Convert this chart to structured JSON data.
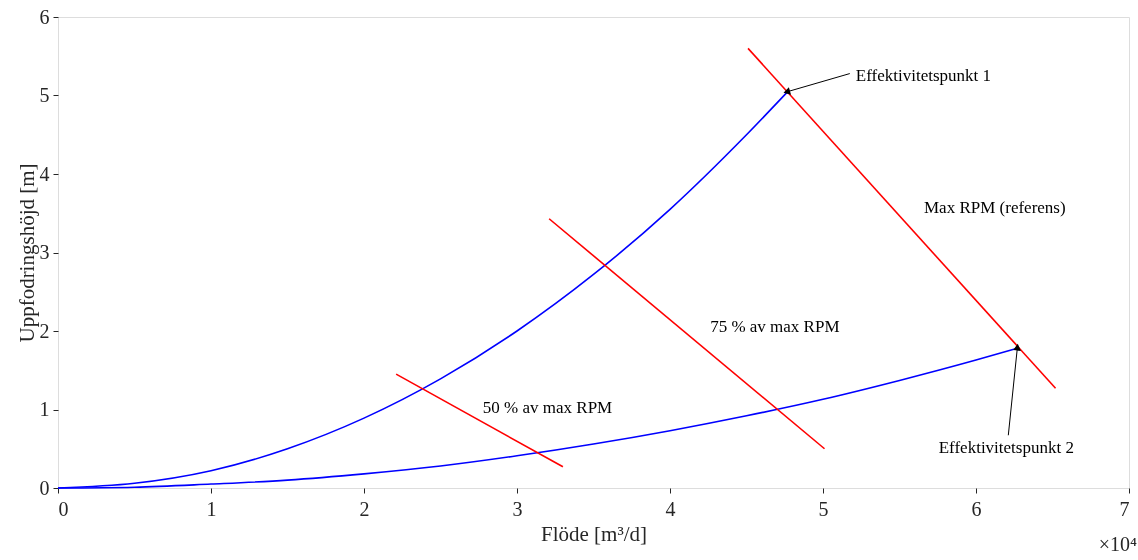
{
  "chart_data": {
    "type": "line",
    "xlabel": "Flöde [m³/d]",
    "ylabel": "Uppfodringshöjd [m]",
    "xlim": [
      0,
      7
    ],
    "ylim": [
      0,
      6
    ],
    "xticks": [
      0,
      1,
      2,
      3,
      4,
      5,
      6,
      7
    ],
    "yticks": [
      0,
      1,
      2,
      3,
      4,
      5,
      6
    ],
    "grid": false,
    "marker": "none",
    "line_style": "solid",
    "series": [
      {
        "color": "#0000ff",
        "x": [
          0,
          0.5,
          1,
          1.5,
          2,
          2.5,
          3,
          3.5,
          4,
          4.5,
          4.77
        ],
        "values": [
          0,
          0.06,
          0.22,
          0.5,
          0.89,
          1.39,
          2.0,
          2.72,
          3.55,
          4.5,
          5.05
        ]
      },
      {
        "color": "#0000ff",
        "x": [
          0,
          0.5,
          1,
          1.5,
          2,
          2.5,
          3,
          3.5,
          4,
          4.5,
          5,
          5.5,
          6,
          6.27
        ],
        "values": [
          0,
          0.01,
          0.05,
          0.1,
          0.18,
          0.28,
          0.41,
          0.56,
          0.73,
          0.92,
          1.13,
          1.37,
          1.63,
          1.78
        ]
      },
      {
        "name": "Max RPM (referens)",
        "color": "#ff0000",
        "x": [
          4.51,
          6.52
        ],
        "values": [
          5.6,
          1.27
        ]
      },
      {
        "name": "75 % av max RPM",
        "color": "#ff0000",
        "x": [
          3.21,
          5.01
        ],
        "values": [
          3.43,
          0.5
        ]
      },
      {
        "name": "50 % av max RPM",
        "color": "#ff0000",
        "x": [
          2.21,
          3.3
        ],
        "values": [
          1.45,
          0.27
        ]
      }
    ],
    "annotations": [
      {
        "text": "Effektivitetspunkt 1",
        "x": 4.77,
        "y": 5.05
      },
      {
        "text": "Effektivitetspunkt 2",
        "x": 6.27,
        "y": 1.78
      },
      "×10⁴"
    ]
  }
}
